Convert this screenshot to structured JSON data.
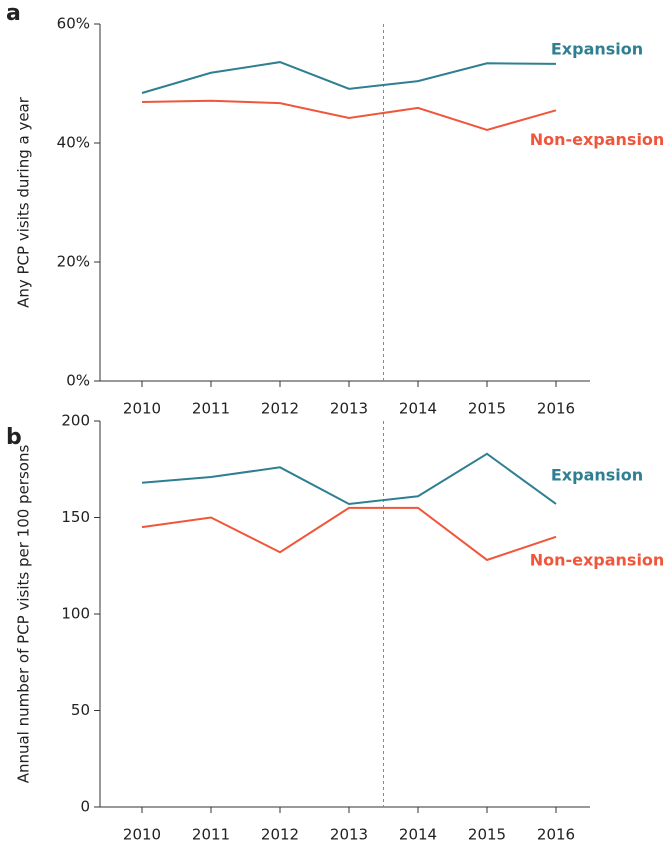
{
  "chart_data": [
    {
      "type": "line",
      "panel": "a",
      "ylabel": "Any PCP visits during a year",
      "categories": [
        "2010",
        "2011",
        "2012",
        "2013",
        "2014",
        "2015",
        "2016"
      ],
      "series": [
        {
          "name": "Expansion",
          "color": "#2e7f91",
          "values": [
            48.4,
            51.8,
            53.6,
            49.1,
            50.4,
            53.4,
            53.3
          ]
        },
        {
          "name": "Non-expansion",
          "color": "#f0563b",
          "values": [
            46.9,
            47.1,
            46.7,
            44.2,
            45.9,
            42.2,
            45.5
          ]
        }
      ],
      "ylim": [
        0,
        60
      ],
      "yticks": [
        {
          "value": 0,
          "label": "0%"
        },
        {
          "value": 20,
          "label": "20%"
        },
        {
          "value": 40,
          "label": "40%"
        },
        {
          "value": 60,
          "label": "60%"
        }
      ],
      "grid": false
    },
    {
      "type": "line",
      "panel": "b",
      "ylabel": "Annual number of PCP visits per 100 persons",
      "categories": [
        "2010",
        "2011",
        "2012",
        "2013",
        "2014",
        "2015",
        "2016"
      ],
      "series": [
        {
          "name": "Expansion",
          "color": "#2e7f91",
          "values": [
            168,
            171,
            176,
            157,
            161,
            183,
            157
          ]
        },
        {
          "name": "Non-expansion",
          "color": "#f0563b",
          "values": [
            145,
            150,
            132,
            155,
            155,
            128,
            140
          ]
        }
      ],
      "ylim": [
        0,
        200
      ],
      "yticks": [
        0,
        50,
        100,
        150,
        200
      ],
      "grid": false
    }
  ]
}
